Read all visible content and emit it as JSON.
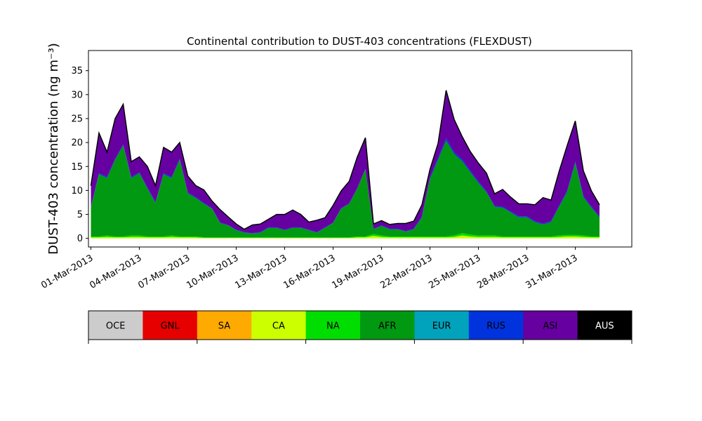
{
  "chart_data": {
    "type": "area",
    "stacked": true,
    "title": "Continental contribution to DUST-403 concentrations (FLEXDUST)",
    "ylabel": "DUST-403 concentration (ng m⁻³)",
    "xlabel": "",
    "ylim": [
      -1.8,
      39.2
    ],
    "yticks": [
      0,
      5,
      10,
      15,
      20,
      25,
      30,
      35
    ],
    "xticks": [
      "01-Mar-2013",
      "04-Mar-2013",
      "07-Mar-2013",
      "10-Mar-2013",
      "13-Mar-2013",
      "16-Mar-2013",
      "19-Mar-2013",
      "22-Mar-2013",
      "25-Mar-2013",
      "28-Mar-2013",
      "31-Mar-2013"
    ],
    "grid": false,
    "x_start": "2013-03-01",
    "x_end": "2013-04-01",
    "x": [
      "2013-03-01 00:00",
      "2013-03-01 12:00",
      "2013-03-02 00:00",
      "2013-03-02 12:00",
      "2013-03-03 00:00",
      "2013-03-03 12:00",
      "2013-03-04 00:00",
      "2013-03-04 12:00",
      "2013-03-05 00:00",
      "2013-03-05 12:00",
      "2013-03-06 00:00",
      "2013-03-06 12:00",
      "2013-03-07 00:00",
      "2013-03-07 12:00",
      "2013-03-08 00:00",
      "2013-03-08 12:00",
      "2013-03-09 00:00",
      "2013-03-09 12:00",
      "2013-03-10 00:00",
      "2013-03-10 12:00",
      "2013-03-11 00:00",
      "2013-03-11 12:00",
      "2013-03-12 00:00",
      "2013-03-12 12:00",
      "2013-03-13 00:00",
      "2013-03-13 12:00",
      "2013-03-14 00:00",
      "2013-03-14 12:00",
      "2013-03-15 00:00",
      "2013-03-15 12:00",
      "2013-03-16 00:00",
      "2013-03-16 12:00",
      "2013-03-17 00:00",
      "2013-03-17 12:00",
      "2013-03-18 00:00",
      "2013-03-18 12:00",
      "2013-03-19 00:00",
      "2013-03-19 12:00",
      "2013-03-20 00:00",
      "2013-03-20 12:00",
      "2013-03-21 00:00",
      "2013-03-21 12:00",
      "2013-03-22 00:00",
      "2013-03-22 12:00",
      "2013-03-23 00:00",
      "2013-03-23 12:00",
      "2013-03-24 00:00",
      "2013-03-24 12:00",
      "2013-03-25 00:00",
      "2013-03-25 12:00",
      "2013-03-26 00:00",
      "2013-03-26 12:00",
      "2013-03-27 00:00",
      "2013-03-27 12:00",
      "2013-03-28 00:00",
      "2013-03-28 12:00",
      "2013-03-29 00:00",
      "2013-03-29 12:00",
      "2013-03-30 00:00",
      "2013-03-30 12:00",
      "2013-03-31 00:00",
      "2013-03-31 12:00",
      "2013-04-01 00:00",
      "2013-04-01 12:00"
    ],
    "series": [
      {
        "name": "OCE",
        "color": "#cccccc",
        "values": [
          0,
          0,
          0,
          0,
          0,
          0,
          0,
          0,
          0,
          0,
          0,
          0,
          0,
          0,
          0,
          0,
          0,
          0,
          0,
          0,
          0,
          0,
          0,
          0,
          0,
          0,
          0,
          0,
          0,
          0,
          0,
          0,
          0,
          0,
          0,
          0,
          0,
          0,
          0,
          0,
          0,
          0,
          0,
          0,
          0,
          0,
          0,
          0,
          0,
          0,
          0,
          0,
          0,
          0,
          0,
          0,
          0,
          0,
          0,
          0,
          0,
          0,
          0,
          0
        ]
      },
      {
        "name": "GNL",
        "color": "#e60000",
        "values": [
          0,
          0,
          0,
          0,
          0,
          0,
          0,
          0,
          0,
          0,
          0,
          0,
          0,
          0,
          0,
          0,
          0,
          0,
          0,
          0,
          0,
          0,
          0,
          0,
          0,
          0,
          0,
          0,
          0,
          0,
          0,
          0,
          0,
          0,
          0,
          0,
          0,
          0,
          0,
          0,
          0,
          0,
          0,
          0,
          0,
          0,
          0,
          0,
          0,
          0,
          0,
          0,
          0,
          0,
          0,
          0,
          0,
          0,
          0,
          0,
          0,
          0,
          0,
          0
        ]
      },
      {
        "name": "SA",
        "color": "#ffaa00",
        "values": [
          0,
          0,
          0,
          0,
          0,
          0,
          0,
          0,
          0,
          0,
          0,
          0,
          0,
          0,
          0,
          0,
          0,
          0,
          0,
          0,
          0,
          0,
          0,
          0,
          0,
          0,
          0,
          0,
          0,
          0,
          0,
          0,
          0,
          0,
          0,
          0,
          0,
          0,
          0,
          0,
          0,
          0,
          0,
          0,
          0,
          0,
          0,
          0,
          0,
          0,
          0,
          0,
          0,
          0,
          0,
          0,
          0,
          0,
          0,
          0,
          0,
          0,
          0,
          0
        ]
      },
      {
        "name": "CA",
        "color": "#ccff00",
        "values": [
          0.2,
          0.2,
          0.3,
          0.2,
          0.2,
          0.3,
          0.3,
          0.2,
          0.2,
          0.2,
          0.3,
          0.2,
          0.2,
          0.2,
          0.1,
          0.1,
          0.1,
          0.1,
          0.1,
          0.1,
          0.1,
          0.1,
          0.1,
          0.1,
          0.1,
          0.1,
          0.1,
          0.1,
          0.1,
          0.1,
          0.1,
          0.1,
          0.1,
          0.2,
          0.2,
          0.5,
          0.3,
          0.2,
          0.2,
          0.2,
          0.2,
          0.2,
          0.2,
          0.2,
          0.2,
          0.3,
          0.6,
          0.4,
          0.3,
          0.3,
          0.3,
          0.2,
          0.2,
          0.2,
          0.2,
          0.2,
          0.2,
          0.2,
          0.3,
          0.4,
          0.4,
          0.3,
          0.2,
          0.2
        ]
      },
      {
        "name": "NA",
        "color": "#00dd00",
        "values": [
          0.2,
          0.2,
          0.3,
          0.2,
          0.2,
          0.3,
          0.3,
          0.2,
          0.2,
          0.2,
          0.3,
          0.2,
          0.2,
          0.2,
          0.1,
          0.1,
          0.1,
          0.1,
          0.1,
          0.1,
          0.1,
          0.1,
          0.1,
          0.1,
          0.1,
          0.1,
          0.1,
          0.1,
          0.1,
          0.1,
          0.1,
          0.1,
          0.1,
          0.2,
          0.2,
          0.4,
          0.3,
          0.2,
          0.2,
          0.2,
          0.2,
          0.2,
          0.2,
          0.2,
          0.2,
          0.3,
          0.5,
          0.4,
          0.3,
          0.3,
          0.3,
          0.2,
          0.2,
          0.2,
          0.2,
          0.2,
          0.2,
          0.2,
          0.3,
          0.3,
          0.3,
          0.3,
          0.2,
          0.2
        ]
      },
      {
        "name": "AFR",
        "color": "#009911",
        "values": [
          6,
          13,
          12,
          16,
          19,
          12,
          13,
          10,
          7,
          13,
          12,
          16,
          9,
          8,
          7,
          6,
          3,
          2.5,
          1.5,
          1,
          0.8,
          1,
          2,
          2,
          1.5,
          2,
          2,
          1.5,
          1,
          2,
          3,
          6,
          7,
          10,
          14,
          1,
          2,
          1.5,
          1.5,
          1,
          1.5,
          4,
          12,
          16,
          20,
          17,
          15,
          13,
          11,
          9,
          6,
          6,
          5,
          4,
          4,
          3,
          2.5,
          3,
          6,
          9,
          15,
          8,
          6,
          4
        ]
      },
      {
        "name": "EUR",
        "color": "#00a3bb",
        "values": [
          0,
          0,
          0,
          0,
          0,
          0,
          0,
          0,
          0,
          0,
          0,
          0,
          0,
          0,
          0,
          0,
          0,
          0,
          0,
          0,
          0,
          0,
          0,
          0,
          0,
          0,
          0,
          0,
          0,
          0,
          0,
          0,
          0,
          0,
          0,
          0,
          0,
          0,
          0,
          0,
          0,
          0,
          0,
          0,
          0,
          0,
          0,
          0,
          0,
          0,
          0,
          0,
          0,
          0,
          0,
          0,
          0,
          0,
          0,
          0,
          0,
          0,
          0,
          0
        ]
      },
      {
        "name": "RUS",
        "color": "#0033dd",
        "values": [
          0.2,
          0.2,
          0.2,
          0.2,
          0.2,
          0.2,
          0.2,
          0.2,
          0.2,
          0.2,
          0.2,
          0.2,
          0.2,
          0.2,
          0.2,
          0.1,
          0.1,
          0.1,
          0.1,
          0.1,
          0.1,
          0.1,
          0.1,
          0.1,
          0.1,
          0.1,
          0.1,
          0.1,
          0.1,
          0.1,
          0.1,
          0.1,
          0.1,
          0.1,
          0.1,
          0.1,
          0.1,
          0.1,
          0.1,
          0.1,
          0.1,
          0.2,
          0.3,
          0.4,
          0.5,
          0.4,
          0.4,
          0.3,
          0.3,
          0.2,
          0.2,
          0.2,
          0.2,
          0.2,
          0.2,
          0.2,
          0.2,
          0.2,
          0.2,
          0.3,
          0.3,
          0.3,
          0.2,
          0.2
        ]
      },
      {
        "name": "ASI",
        "color": "#6600a1",
        "values": [
          4.4,
          8.4,
          5.2,
          8.4,
          8.4,
          3.2,
          3.2,
          4.4,
          3.4,
          5.4,
          5.2,
          3.4,
          3.4,
          2.4,
          2.7,
          1.5,
          2.7,
          1.7,
          1.2,
          0.6,
          1.7,
          1.7,
          1.7,
          2.7,
          3.2,
          3.6,
          2.7,
          1.6,
          2.5,
          2,
          3.6,
          3.6,
          4.6,
          6.5,
          6.5,
          1,
          1,
          0.9,
          1.1,
          1.6,
          1.6,
          2.4,
          1.7,
          3,
          10,
          6.8,
          4.7,
          4,
          3.8,
          3.8,
          2.5,
          3.6,
          3,
          2.6,
          2.6,
          3.4,
          5.4,
          4.4,
          7.2,
          9.4,
          8.5,
          5.2,
          3.3,
          2.4
        ]
      },
      {
        "name": "AUS",
        "color": "#000000",
        "values": [
          0,
          0,
          0,
          0,
          0,
          0,
          0,
          0,
          0,
          0,
          0,
          0,
          0,
          0,
          0,
          0,
          0,
          0,
          0,
          0,
          0,
          0,
          0,
          0,
          0,
          0,
          0,
          0,
          0,
          0,
          0,
          0,
          0,
          0,
          0,
          0,
          0,
          0,
          0,
          0,
          0,
          0,
          0,
          0,
          0,
          0,
          0,
          0,
          0,
          0,
          0,
          0,
          0,
          0,
          0,
          0,
          0,
          0,
          0,
          0,
          0,
          0,
          0,
          0
        ]
      }
    ],
    "total_line_color": "#000000"
  }
}
